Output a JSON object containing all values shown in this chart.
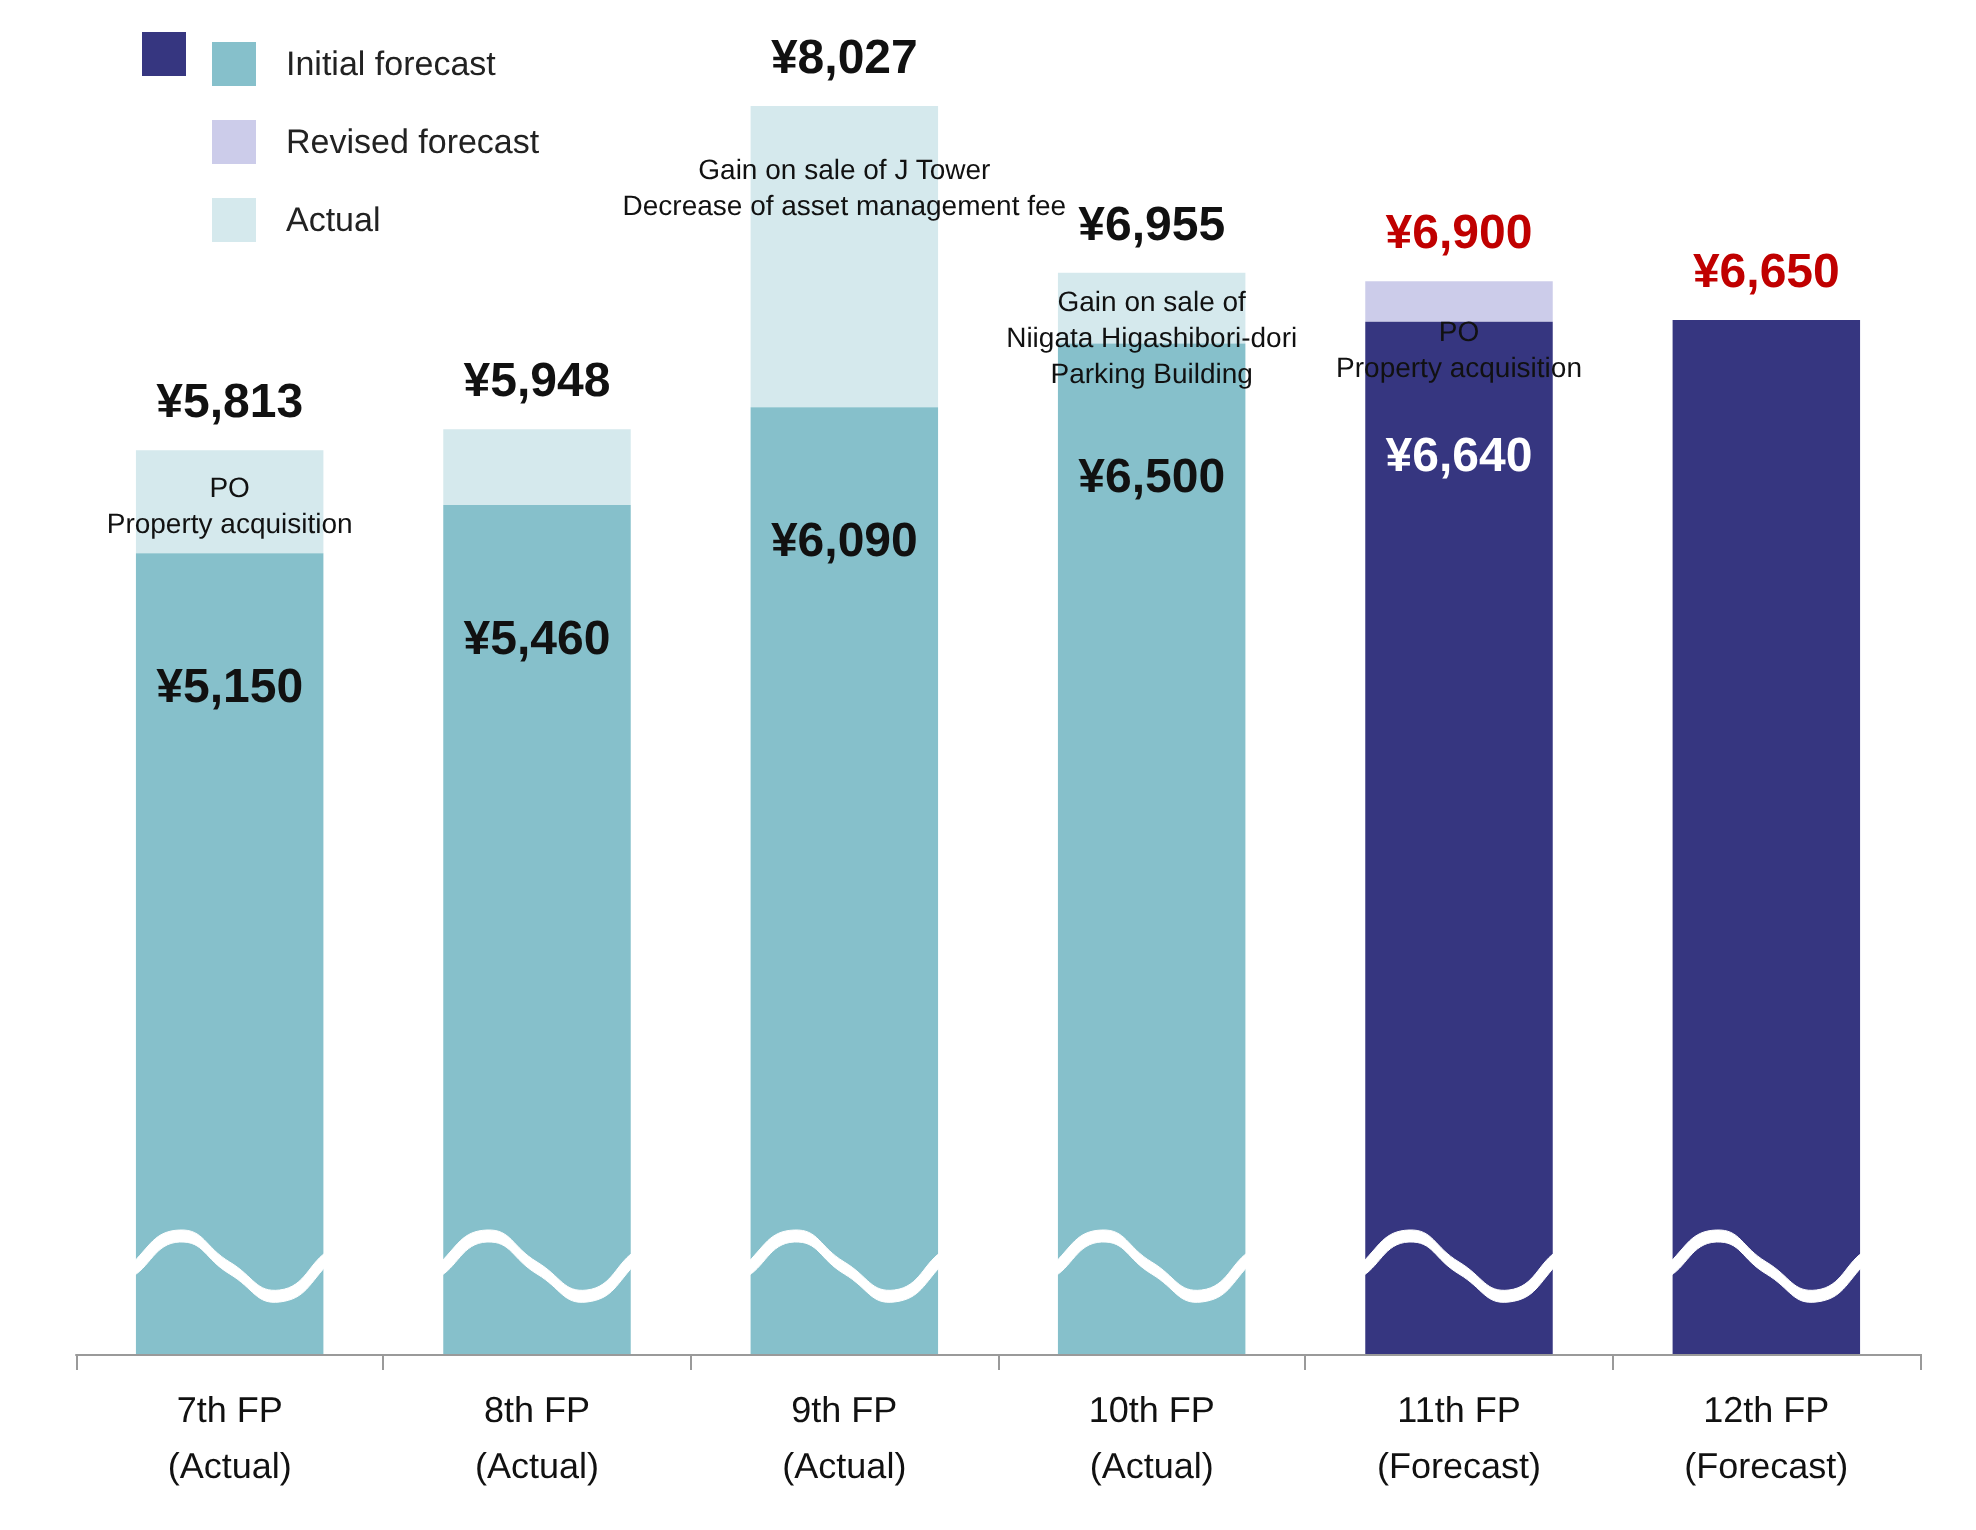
{
  "chart_data": {
    "type": "bar",
    "stacked": true,
    "totals": [
      "¥5,813",
      "¥5,948",
      "¥8,027",
      "¥6,955",
      "¥6,900",
      "¥6,650"
    ],
    "categories": [
      "7th FP\n(Actual)",
      "8th FP\n(Actual)",
      "9th FP\n(Actual)",
      "10th FP\n(Actual)",
      "11th FP\n(Forecast)",
      "12th FP\n(Forecast)"
    ],
    "ylim": [
      0,
      8027
    ],
    "tick_labels": "x",
    "grid": false,
    "legend": "top left",
    "series": [
      {
        "name": "Initial forecast",
        "color": "#86c0cb",
        "colors": [
          "#86c0cb",
          "#86c0cb",
          "#86c0cb",
          "#86c0cb",
          "#363680",
          "#363680"
        ],
        "values": [
          5150,
          5460,
          6090,
          6500,
          6640,
          6650
        ],
        "value_labels": [
          "¥5,150",
          "¥5,460",
          "¥6,090",
          "¥6,500",
          "¥6,640",
          null
        ]
      },
      {
        "name": "Revised forecast",
        "color": "#ccccea",
        "values": [
          null,
          null,
          null,
          null,
          260,
          null
        ]
      },
      {
        "name": "Actual",
        "color": "#d5e9ed",
        "values": [
          663,
          488,
          1937,
          455,
          null,
          null
        ]
      }
    ],
    "annotations": [
      "PO\nProperty acquisition",
      "Gain on sale of J Tower\nDecrease of asset management fee",
      "Gain on sale of\nNiigata Higashibori-dori\nParking Building",
      "PO\nProperty acquisition"
    ]
  }
}
